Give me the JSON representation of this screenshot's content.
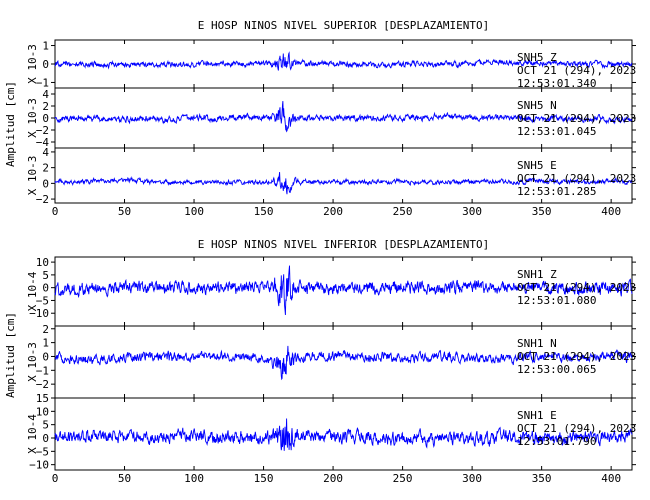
{
  "line_color": "#0000ff",
  "chart_data": [
    {
      "type": "line",
      "title": "E HOSP NINOS NIVEL SUPERIOR [DESPLAZAMIENTO]",
      "ylabel": "Amplitud [cm]",
      "xlim": [
        0,
        415
      ],
      "xticks": [
        0,
        50,
        100,
        150,
        200,
        250,
        300,
        350,
        400
      ],
      "series": [
        {
          "name": "SNH5 Z",
          "date": "OCT 21 (294), 2023",
          "time": "12:53:01.340",
          "scale": "X 10-3",
          "ylim": [
            -1.3,
            1.3
          ],
          "yticks": [
            -1,
            0,
            1
          ],
          "base": 0.35,
          "event": 0.55
        },
        {
          "name": "SNH5 N",
          "date": "OCT 21 (294), 2023",
          "time": "12:53:01.045",
          "scale": "X 10-3",
          "ylim": [
            -5,
            5
          ],
          "yticks": [
            -4,
            -2,
            0,
            2,
            4
          ],
          "base": 0.3,
          "event": 0.75
        },
        {
          "name": "SNH5 E",
          "date": "OCT 21 (294), 2023",
          "time": "12:53:01.285",
          "scale": "X 10-3",
          "ylim": [
            -2.5,
            4.5
          ],
          "yticks": [
            -2,
            0,
            2,
            4
          ],
          "base": 0.25,
          "event": 0.75
        }
      ]
    },
    {
      "type": "line",
      "title": "E HOSP NINOS NIVEL INFERIOR [DESPLAZAMIENTO]",
      "ylabel": "Amplitud [cm]",
      "xlim": [
        0,
        415
      ],
      "xticks": [
        0,
        50,
        100,
        150,
        200,
        250,
        300,
        350,
        400
      ],
      "series": [
        {
          "name": "SNH1 Z",
          "date": "OCT 21 (294), 2023",
          "time": "12:53:01.080",
          "scale": "X 10-4",
          "ylim": [
            -15,
            12
          ],
          "yticks": [
            -10,
            -5,
            0,
            5,
            10
          ],
          "base": 0.55,
          "event": 0.55
        },
        {
          "name": "SNH1 N",
          "date": "OCT 21 (294), 2023",
          "time": "12:53:00.065",
          "scale": "X 10-3",
          "ylim": [
            -3,
            2.2
          ],
          "yticks": [
            -2,
            -1,
            0,
            1,
            2
          ],
          "base": 0.4,
          "event": 0.6
        },
        {
          "name": "SNH1 E",
          "date": "OCT 21 (294), 2023",
          "time": "12:53:01.790",
          "scale": "X 10-4",
          "ylim": [
            -12,
            15
          ],
          "yticks": [
            -10,
            -5,
            0,
            5,
            10,
            15
          ],
          "base": 0.55,
          "event": 0.5
        }
      ]
    }
  ]
}
